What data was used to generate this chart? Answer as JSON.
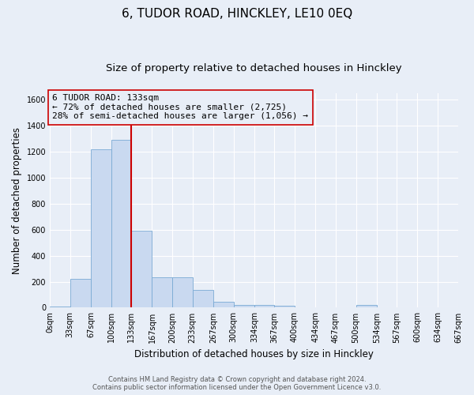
{
  "title": "6, TUDOR ROAD, HINCKLEY, LE10 0EQ",
  "subtitle": "Size of property relative to detached houses in Hinckley",
  "xlabel": "Distribution of detached houses by size in Hinckley",
  "ylabel": "Number of detached properties",
  "footer_line1": "Contains HM Land Registry data © Crown copyright and database right 2024.",
  "footer_line2": "Contains public sector information licensed under the Open Government Licence v3.0.",
  "bin_edges": [
    0,
    33,
    67,
    100,
    133,
    167,
    200,
    233,
    267,
    300,
    334,
    367,
    400,
    434,
    467,
    500,
    534,
    567,
    600,
    634,
    667
  ],
  "bar_heights": [
    10,
    220,
    1220,
    1290,
    590,
    235,
    235,
    135,
    45,
    22,
    22,
    15,
    0,
    0,
    0,
    20,
    0,
    0,
    0,
    0
  ],
  "bar_color": "#c9d9f0",
  "bar_edgecolor": "#7aaad4",
  "property_size": 133,
  "vline_color": "#cc0000",
  "annotation_line1": "6 TUDOR ROAD: 133sqm",
  "annotation_line2": "← 72% of detached houses are smaller (2,725)",
  "annotation_line3": "28% of semi-detached houses are larger (1,056) →",
  "annotation_box_edgecolor": "#cc0000",
  "ylim": [
    0,
    1650
  ],
  "yticks": [
    0,
    200,
    400,
    600,
    800,
    1000,
    1200,
    1400,
    1600
  ],
  "background_color": "#e8eef7",
  "grid_color": "#ffffff",
  "title_fontsize": 11,
  "subtitle_fontsize": 9.5,
  "ylabel_fontsize": 8.5,
  "xlabel_fontsize": 8.5,
  "tick_label_fontsize": 7,
  "annotation_fontsize": 8,
  "footer_fontsize": 6
}
